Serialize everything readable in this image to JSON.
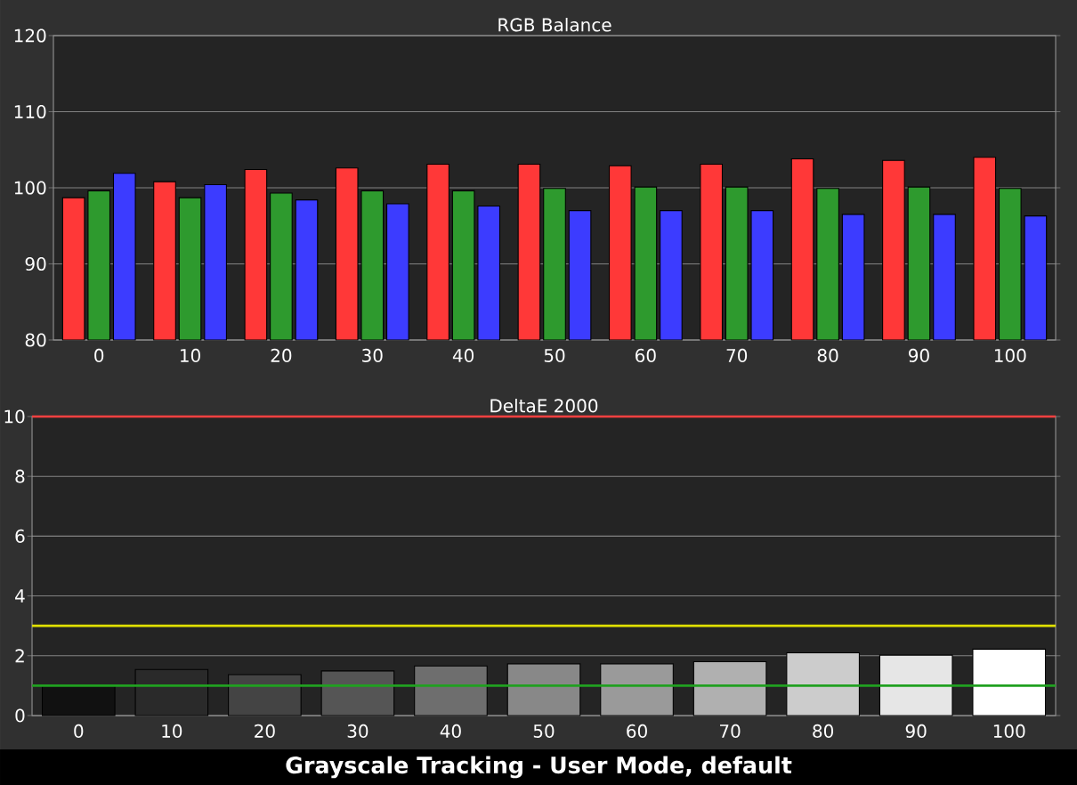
{
  "chart_data": [
    {
      "type": "bar",
      "title": "RGB Balance",
      "categories": [
        "0",
        "10",
        "20",
        "30",
        "40",
        "50",
        "60",
        "70",
        "80",
        "90",
        "100"
      ],
      "series": [
        {
          "color": "#ff3838",
          "values": [
            98.7,
            100.8,
            102.4,
            102.6,
            103.1,
            103.1,
            102.9,
            103.1,
            103.8,
            103.6,
            104.0
          ]
        },
        {
          "color": "#2e9a2e",
          "values": [
            99.6,
            98.7,
            99.3,
            99.6,
            99.6,
            99.9,
            100.1,
            100.1,
            99.9,
            100.1,
            99.9
          ]
        },
        {
          "color": "#3c3cff",
          "values": [
            101.9,
            100.4,
            98.4,
            97.9,
            97.6,
            97.0,
            97.0,
            97.0,
            96.5,
            96.5,
            96.3
          ]
        }
      ],
      "ylim": [
        80,
        120
      ],
      "yticks": [
        80,
        90,
        100,
        110,
        120
      ],
      "grid": "y"
    },
    {
      "type": "bar",
      "title": "DeltaE 2000",
      "categories": [
        "0",
        "10",
        "20",
        "30",
        "40",
        "50",
        "60",
        "70",
        "80",
        "90",
        "100"
      ],
      "values": [
        1.0,
        1.54,
        1.37,
        1.49,
        1.66,
        1.73,
        1.73,
        1.8,
        2.1,
        2.02,
        2.22
      ],
      "colors": [
        "#111111",
        "#2a2a2a",
        "#444444",
        "#555555",
        "#6e6e6e",
        "#888888",
        "#9a9a9a",
        "#b0b0b0",
        "#cccccc",
        "#e6e6e6",
        "#ffffff"
      ],
      "ylim": [
        0,
        10
      ],
      "yticks": [
        0,
        2,
        4,
        6,
        8,
        10
      ],
      "grid": "y",
      "ref_lines": [
        {
          "axis": "y",
          "value": 10,
          "color": "#ff4040"
        },
        {
          "axis": "y",
          "value": 3,
          "color": "#e0e000"
        },
        {
          "axis": "y",
          "value": 1,
          "color": "#20a020"
        }
      ],
      "annotations": [
        "Grayscale Tracking - User Mode, default"
      ]
    }
  ]
}
